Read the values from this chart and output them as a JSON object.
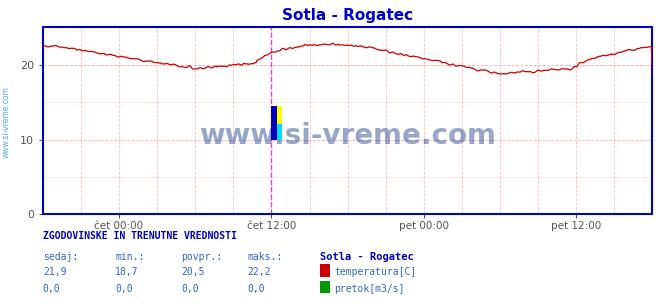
{
  "title": "Sotla - Rogatec",
  "title_color": "#0000cc",
  "bg_color": "#ffffff",
  "plot_bg_color": "#ffffff",
  "spine_color": "#0000bb",
  "grid_color": "#ffaaaa",
  "grid_color_v": "#ddddff",
  "tick_label_color": "#555555",
  "x_tick_labels": [
    "čet 00:00",
    "čet 12:00",
    "pet 00:00",
    "pet 12:00"
  ],
  "x_tick_positions": [
    0.125,
    0.375,
    0.625,
    0.875
  ],
  "ylim": [
    0,
    25
  ],
  "yticks": [
    0,
    10,
    20
  ],
  "line_color": "#cc0000",
  "line_color2": "#009900",
  "vline_color": "#dd44dd",
  "vline_positions": [
    0.375,
    0.9999
  ],
  "watermark": "www.si-vreme.com",
  "watermark_color": "#1a3a8a",
  "footer_title": "ZGODOVINSKE IN TRENUTNE VREDNOSTI",
  "footer_cols": [
    "sedaj:",
    "min.:",
    "povpr.:",
    "maks.:"
  ],
  "footer_vals_temp": [
    "21,9",
    "18,7",
    "20,5",
    "22,2"
  ],
  "footer_vals_pretok": [
    "0,0",
    "0,0",
    "0,0",
    "0,0"
  ],
  "legend_station": "Sotla - Rogatec",
  "legend_temp": "temperatura[C]",
  "legend_pretok": "pretok[m3/s]",
  "legend_temp_color": "#cc0000",
  "legend_pretok_color": "#009900",
  "figsize": [
    6.59,
    3.04
  ],
  "dpi": 100,
  "left_label": "www.si-vreme.com",
  "left_label_color": "#3399cc",
  "icon_blue": "#0000bb",
  "icon_yellow": "#ffff00",
  "icon_cyan": "#00ddff"
}
